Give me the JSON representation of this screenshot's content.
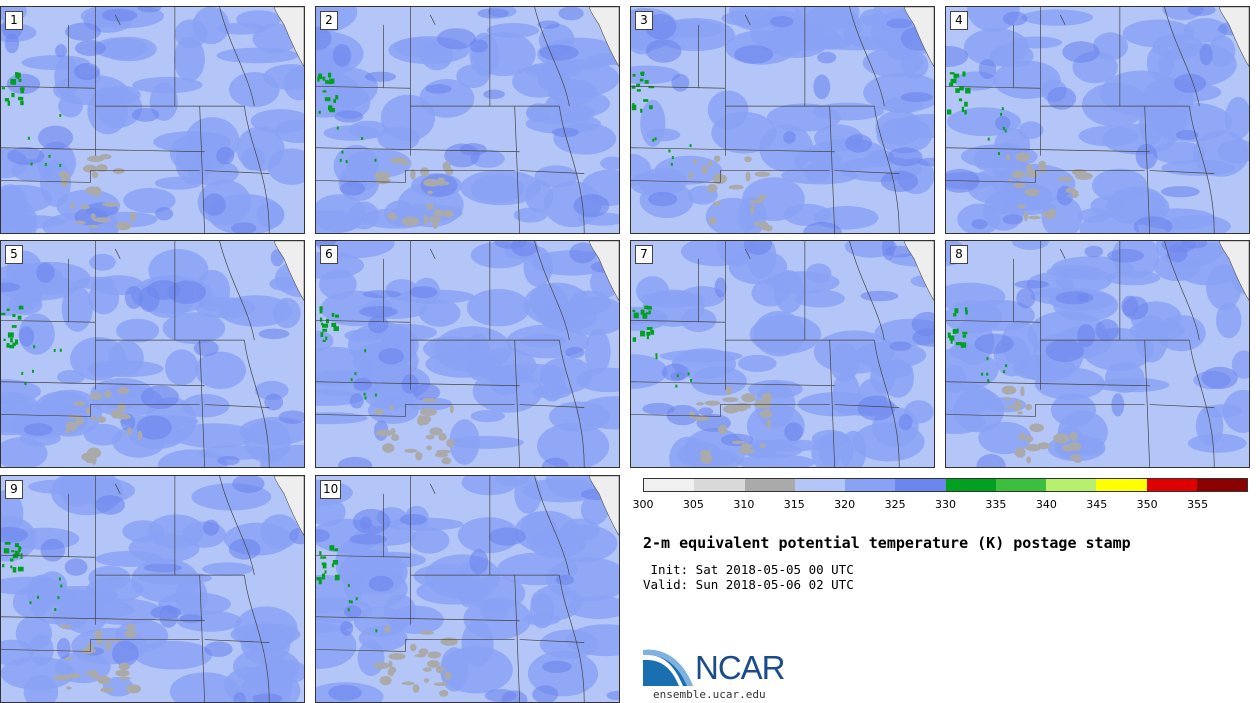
{
  "panels": [
    {
      "label": "1"
    },
    {
      "label": "2"
    },
    {
      "label": "3"
    },
    {
      "label": "4"
    },
    {
      "label": "5"
    },
    {
      "label": "6"
    },
    {
      "label": "7"
    },
    {
      "label": "8"
    },
    {
      "label": "9"
    },
    {
      "label": "10"
    }
  ],
  "colorbar": {
    "colors": [
      "#f0f0f0",
      "#d9d9d9",
      "#aaaaaa",
      "#b4c6f7",
      "#8aa2f5",
      "#6c86ef",
      "#00a020",
      "#3cbf3c",
      "#b6f06e",
      "#ffff00",
      "#e00000",
      "#8b0000"
    ],
    "tick_labels": [
      "300",
      "305",
      "310",
      "315",
      "320",
      "325",
      "330",
      "335",
      "340",
      "345",
      "350",
      "355"
    ]
  },
  "title": "2-m equivalent potential temperature (K) postage stamp",
  "init_line": " Init: Sat 2018-05-05 00 UTC",
  "valid_line": "Valid: Sun 2018-05-06 02 UTC",
  "logo": {
    "text": "NCAR",
    "url": "ensemble.ucar.edu"
  },
  "map_colors": {
    "base_light": "#b4c6f7",
    "base_mid": "#8aa2f5",
    "warm_patch": "#6c86ef",
    "gray_patch": "#aaaaaa",
    "green_patch": "#00a020",
    "land_white": "#eeeeee"
  }
}
